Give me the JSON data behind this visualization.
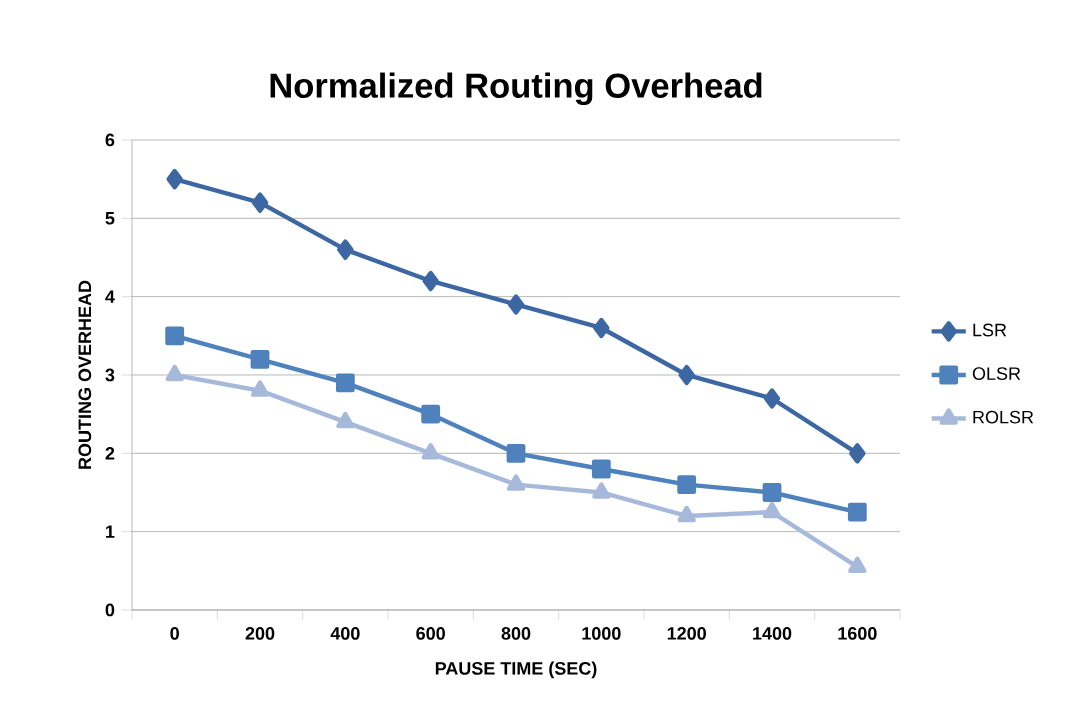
{
  "chart_data": {
    "type": "line",
    "title": "Normalized Routing Overhead",
    "xlabel": "PAUSE TIME (SEC)",
    "ylabel": "ROUTING OVERHEAD",
    "categories": [
      "0",
      "200",
      "400",
      "600",
      "800",
      "1000",
      "1200",
      "1400",
      "1600"
    ],
    "series": [
      {
        "name": "LSR",
        "color": "#3c67a3",
        "marker": "diamond",
        "values": [
          5.5,
          5.2,
          4.6,
          4.2,
          3.9,
          3.6,
          3.0,
          2.7,
          2.0
        ]
      },
      {
        "name": "OLSR",
        "color": "#4f81bd",
        "marker": "square",
        "values": [
          3.5,
          3.2,
          2.9,
          2.5,
          2.0,
          1.8,
          1.6,
          1.5,
          1.25
        ]
      },
      {
        "name": "ROLSR",
        "color": "#a7b9da",
        "marker": "triangle",
        "values": [
          3.0,
          2.8,
          2.4,
          2.0,
          1.6,
          1.5,
          1.2,
          1.25,
          0.55
        ]
      }
    ],
    "ylim": [
      0,
      6
    ],
    "yticks": [
      0,
      1,
      2,
      3,
      4,
      5,
      6
    ],
    "grid": "y",
    "legend": "right",
    "line_style": "solid"
  }
}
